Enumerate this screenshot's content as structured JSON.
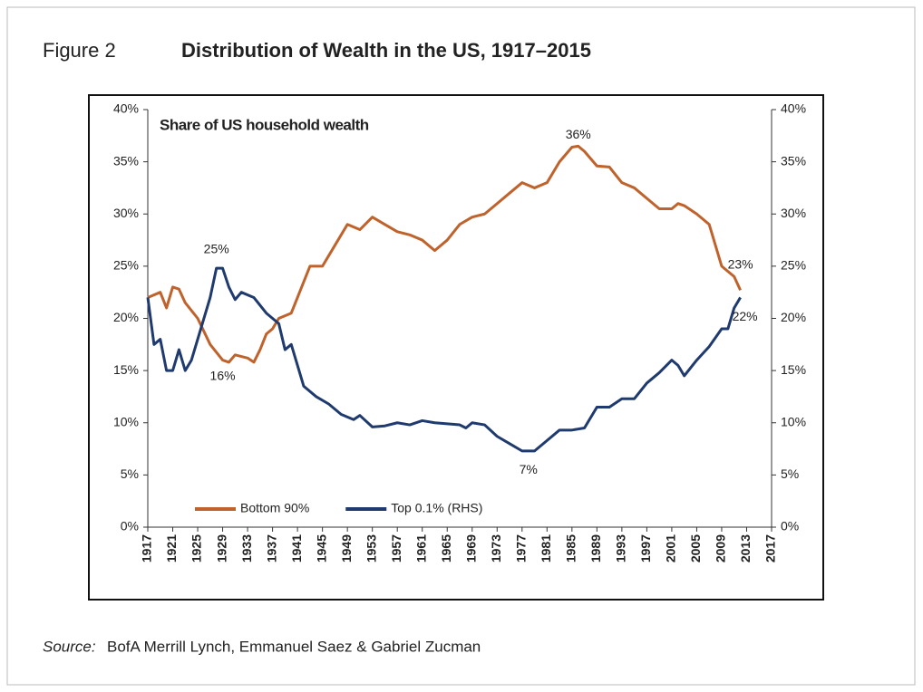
{
  "chart_data": {
    "type": "line",
    "figure_label": "Figure 2",
    "title": "Distribution of Wealth in the US, 1917–2015",
    "subtitle": "Share of US household wealth",
    "source_label": "Source:",
    "source": "BofA Merrill Lynch, Emmanuel Saez & Gabriel Zucman",
    "xlim": [
      1917,
      2017
    ],
    "xticks": [
      1917,
      1921,
      1925,
      1929,
      1933,
      1937,
      1941,
      1945,
      1949,
      1953,
      1957,
      1961,
      1965,
      1969,
      1973,
      1977,
      1981,
      1985,
      1989,
      1993,
      1997,
      2001,
      2005,
      2009,
      2013,
      2017
    ],
    "ylim": [
      0,
      40
    ],
    "yticks": [
      {
        "value": 0,
        "label": "0%"
      },
      {
        "value": 5,
        "label": "5%"
      },
      {
        "value": 10,
        "label": "10%"
      },
      {
        "value": 15,
        "label": "15%"
      },
      {
        "value": 20,
        "label": "20%"
      },
      {
        "value": 25,
        "label": "25%"
      },
      {
        "value": 30,
        "label": "30%"
      },
      {
        "value": 35,
        "label": "35%"
      },
      {
        "value": 40,
        "label": "40%"
      }
    ],
    "y2lim": [
      0,
      40
    ],
    "y2ticks": [
      {
        "value": 0,
        "label": "0%"
      },
      {
        "value": 5,
        "label": "5%"
      },
      {
        "value": 10,
        "label": "10%"
      },
      {
        "value": 15,
        "label": "15%"
      },
      {
        "value": 20,
        "label": "20%"
      },
      {
        "value": 25,
        "label": "25%"
      },
      {
        "value": 30,
        "label": "30%"
      },
      {
        "value": 35,
        "label": "35%"
      },
      {
        "value": 40,
        "label": "40%"
      }
    ],
    "grid": false,
    "legend": "lower left",
    "series": [
      {
        "name": "Bottom 90%",
        "color": "#c0622b",
        "axis": "y",
        "x": [
          1917,
          1919,
          1920,
          1921,
          1922,
          1923,
          1925,
          1927,
          1929,
          1930,
          1931,
          1933,
          1934,
          1935,
          1936,
          1937,
          1938,
          1940,
          1941,
          1943,
          1945,
          1947,
          1949,
          1951,
          1953,
          1955,
          1957,
          1959,
          1961,
          1963,
          1965,
          1967,
          1969,
          1971,
          1973,
          1975,
          1977,
          1979,
          1981,
          1983,
          1985,
          1986,
          1987,
          1989,
          1991,
          1993,
          1995,
          1997,
          1999,
          2001,
          2002,
          2003,
          2005,
          2007,
          2009,
          2011,
          2012
        ],
        "values": [
          22,
          22.5,
          21,
          23,
          22.8,
          21.5,
          20,
          17.5,
          16,
          15.8,
          16.5,
          16.2,
          15.8,
          17,
          18.5,
          19,
          20,
          20.5,
          22,
          25,
          25,
          27,
          29,
          28.5,
          29.7,
          29,
          28.3,
          28,
          27.5,
          26.5,
          27.5,
          29,
          29.7,
          30,
          31,
          32,
          33,
          32.5,
          33,
          35,
          36.4,
          36.5,
          36,
          34.6,
          34.5,
          33,
          32.5,
          31.5,
          30.5,
          30.5,
          31,
          30.8,
          30,
          29,
          25,
          24,
          22.7
        ]
      },
      {
        "name": "Top 0.1% (RHS)",
        "color": "#1f3a6e",
        "axis": "y2",
        "x": [
          1917,
          1918,
          1919,
          1920,
          1921,
          1922,
          1923,
          1924,
          1925,
          1927,
          1928,
          1929,
          1930,
          1931,
          1932,
          1934,
          1936,
          1938,
          1939,
          1940,
          1942,
          1944,
          1946,
          1948,
          1950,
          1951,
          1953,
          1955,
          1957,
          1959,
          1961,
          1963,
          1965,
          1967,
          1968,
          1969,
          1971,
          1973,
          1975,
          1977,
          1979,
          1981,
          1983,
          1985,
          1987,
          1989,
          1991,
          1993,
          1995,
          1997,
          1999,
          2001,
          2002,
          2003,
          2005,
          2007,
          2009,
          2010,
          2011,
          2012
        ],
        "values": [
          22,
          17.5,
          18,
          15,
          15,
          17,
          15,
          16,
          18,
          22,
          24.8,
          24.8,
          23,
          21.8,
          22.5,
          22,
          20.5,
          19.5,
          17,
          17.5,
          13.5,
          12.5,
          11.8,
          10.8,
          10.3,
          10.7,
          9.6,
          9.7,
          10,
          9.8,
          10.2,
          10,
          9.9,
          9.8,
          9.5,
          10,
          9.8,
          8.7,
          8,
          7.3,
          7.3,
          8.3,
          9.3,
          9.3,
          9.5,
          11.5,
          11.5,
          12.3,
          12.3,
          13.8,
          14.8,
          16,
          15.5,
          14.5,
          16,
          17.3,
          19,
          19,
          21,
          22
        ]
      }
    ],
    "annotations": [
      {
        "label": "36%",
        "x": 1986,
        "y": 36
      },
      {
        "label": "25%",
        "x": 1928,
        "y": 25
      },
      {
        "label": "16%",
        "x": 1929,
        "y": 16
      },
      {
        "label": "7%",
        "x": 1978,
        "y": 7
      },
      {
        "label": "23%",
        "x": 2012,
        "y": 23
      },
      {
        "label": "22%",
        "x": 2012,
        "y": 22
      }
    ]
  }
}
